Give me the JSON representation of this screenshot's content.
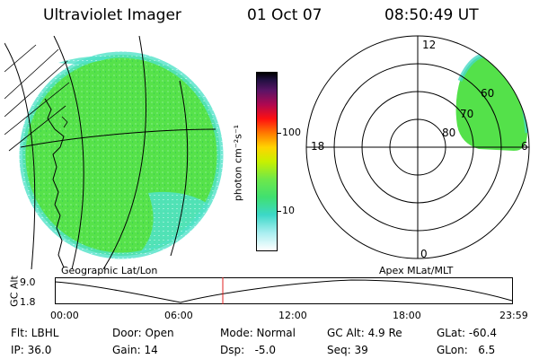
{
  "header": {
    "instrument": "Ultraviolet Imager",
    "date": "01 Oct 07",
    "time": "08:50:49 UT"
  },
  "geo_panel": {
    "caption": "Geographic Lat/Lon"
  },
  "colorbar": {
    "unit_label": "photon cm⁻²s⁻¹",
    "ticks": [
      "100",
      "10"
    ],
    "scale": "log"
  },
  "apex_panel": {
    "caption": "Apex MLat/MLT",
    "mlt_labels": {
      "top": "12",
      "left": "18",
      "right": "6",
      "bottom": "0"
    },
    "mlat_labels": [
      "60",
      "70",
      "80"
    ]
  },
  "altitude_plot": {
    "ylabel": "GC Alt",
    "yticks": [
      "9.0",
      "1.8"
    ],
    "xticks": [
      "00:00",
      "06:00",
      "12:00",
      "18:00",
      "23:59"
    ]
  },
  "info": {
    "filter": "Flt: LBHL",
    "ip": "IP: 36.0",
    "door": "Door: Open",
    "gain": "Gain: 14",
    "mode": "Mode: Normal",
    "dsp": "Dsp:   -5.0",
    "gc_alt": "GC Alt: 4.9 Re",
    "seq": "Seq: 39",
    "glat": "GLat: -60.4",
    "glon": "GLon:   6.5"
  },
  "colors": {
    "image_green": "#55e34a",
    "image_cyan": "#44dccc",
    "time_marker": "#e02020"
  }
}
